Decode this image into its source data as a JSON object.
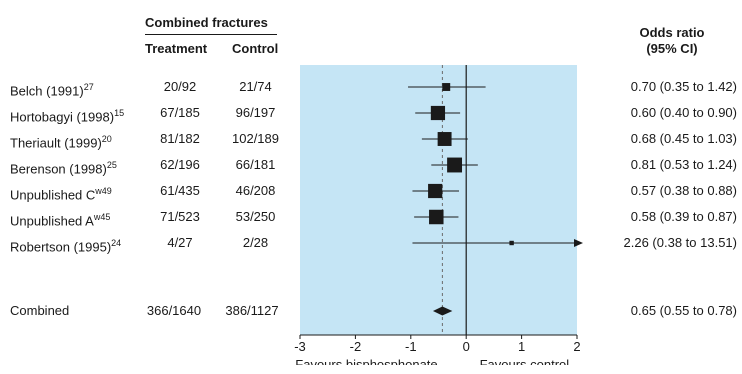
{
  "header": {
    "group_title": "Combined fractures",
    "col_treatment": "Treatment",
    "col_control": "Control",
    "or_title_line1": "Odds ratio",
    "or_title_line2": "(95% CI)"
  },
  "colors": {
    "plot_background": "#c5e5f5",
    "marker": "#1a1a1a"
  },
  "rows": [
    {
      "study": "Belch (1991)",
      "ref": "27",
      "treatment": "20/92",
      "control": "21/74",
      "or_text": "0.70 (0.35 to 1.42)"
    },
    {
      "study": "Hortobagyi (1998)",
      "ref": "15",
      "treatment": "67/185",
      "control": "96/197",
      "or_text": "0.60 (0.40 to 0.90)"
    },
    {
      "study": "Theriault (1999)",
      "ref": "20",
      "treatment": "81/182",
      "control": "102/189",
      "or_text": "0.68 (0.45 to 1.03)"
    },
    {
      "study": "Berenson (1998)",
      "ref": "25",
      "treatment": "62/196",
      "control": "66/181",
      "or_text": "0.81 (0.53 to 1.24)"
    },
    {
      "study": "Unpublished C",
      "ref": "w49",
      "treatment": "61/435",
      "control": "46/208",
      "or_text": "0.57 (0.38 to 0.88)"
    },
    {
      "study": "Unpublished A",
      "ref": "w45",
      "treatment": "71/523",
      "control": "53/250",
      "or_text": "0.58 (0.39 to 0.87)"
    },
    {
      "study": "Robertson (1995)",
      "ref": "24",
      "treatment": "4/27",
      "control": "2/28",
      "or_text": "2.26 (0.38 to 13.51)"
    }
  ],
  "combined": {
    "study": "Combined",
    "treatment": "366/1640",
    "control": "386/1127",
    "or_text": "0.65 (0.55 to 0.78)"
  },
  "chart_data": {
    "type": "forest",
    "scale": "log odds ratio",
    "xlim": [
      -3,
      2
    ],
    "xticks": [
      "-3",
      "-2",
      "-1",
      "0",
      "1",
      "2"
    ],
    "xlabel_left": "Favours bisphosphonate",
    "xlabel_right": "Favours control",
    "reference_line": 0,
    "pooled_line": -0.43,
    "studies": [
      {
        "name": "Belch (1991)",
        "estimate": -0.36,
        "lower": -1.05,
        "upper": 0.35,
        "weight": 0.35
      },
      {
        "name": "Hortobagyi (1998)",
        "estimate": -0.51,
        "lower": -0.92,
        "upper": -0.11,
        "weight": 0.8
      },
      {
        "name": "Theriault (1999)",
        "estimate": -0.39,
        "lower": -0.8,
        "upper": 0.03,
        "weight": 0.78
      },
      {
        "name": "Berenson (1998)",
        "estimate": -0.21,
        "lower": -0.63,
        "upper": 0.21,
        "weight": 0.85
      },
      {
        "name": "Unpublished C",
        "estimate": -0.56,
        "lower": -0.97,
        "upper": -0.13,
        "weight": 0.8
      },
      {
        "name": "Unpublished A",
        "estimate": -0.54,
        "lower": -0.94,
        "upper": -0.14,
        "weight": 0.82
      },
      {
        "name": "Robertson (1995)",
        "estimate": 0.82,
        "lower": -0.97,
        "upper": 2.6,
        "weight": 0.1
      }
    ],
    "pooled": {
      "name": "Combined",
      "estimate": -0.43,
      "lower": -0.6,
      "upper": -0.25
    }
  }
}
